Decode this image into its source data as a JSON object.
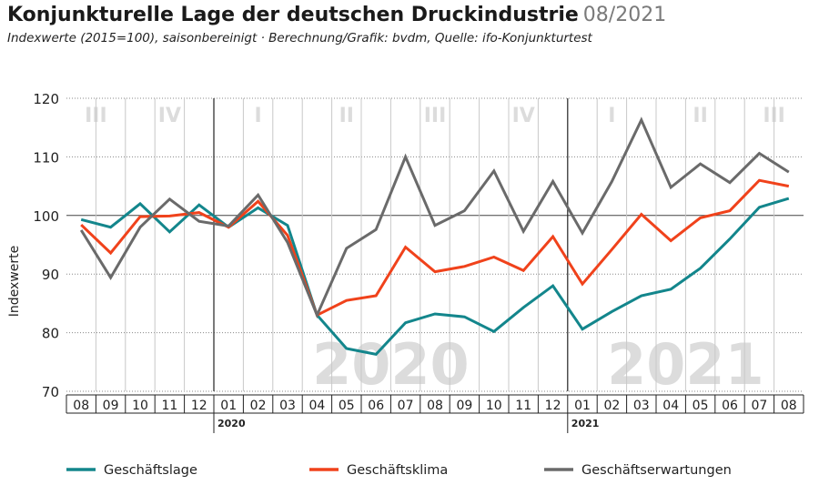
{
  "title": "Konjunkturelle Lage der deutschen Druckindustrie",
  "title_date": "08/2021",
  "subtitle": "Indexwerte (2015=100), saisonbereinigt · Berechnung/Grafik: bvdm, Quelle: ifo-Konjunkturtest",
  "colors": {
    "Geschäftslage": "#13868c",
    "Geschäftsklima": "#f0421b",
    "Geschäftserwartungen": "#6a6a6a",
    "watermark": "#dcdcdc",
    "grid": "#bbbbbb"
  },
  "chart_data": {
    "type": "line",
    "ylabel": "Indexwerte",
    "xlabel": "",
    "ylim": [
      70,
      120
    ],
    "yticks": [
      70,
      80,
      90,
      100,
      110,
      120
    ],
    "reference_line": 100,
    "grid": true,
    "legend_position": "bottom",
    "categories": [
      "08",
      "09",
      "10",
      "11",
      "12",
      "01",
      "02",
      "03",
      "04",
      "05",
      "06",
      "07",
      "08",
      "09",
      "10",
      "11",
      "12",
      "01",
      "02",
      "03",
      "04",
      "05",
      "06",
      "07",
      "08"
    ],
    "year_labels": [
      {
        "label": "2020",
        "start_index": 5
      },
      {
        "label": "2021",
        "start_index": 17
      }
    ],
    "year_watermarks": [
      {
        "label": "2020",
        "start_index": 5,
        "end_index": 16
      },
      {
        "label": "2021",
        "start_index": 17,
        "end_index": 24
      }
    ],
    "quarters": [
      {
        "label": "III",
        "start_index": 0,
        "end_index": 1
      },
      {
        "label": "IV",
        "start_index": 2,
        "end_index": 4
      },
      {
        "label": "I",
        "start_index": 5,
        "end_index": 7
      },
      {
        "label": "II",
        "start_index": 8,
        "end_index": 10
      },
      {
        "label": "III",
        "start_index": 11,
        "end_index": 13
      },
      {
        "label": "IV",
        "start_index": 14,
        "end_index": 16
      },
      {
        "label": "I",
        "start_index": 17,
        "end_index": 19
      },
      {
        "label": "II",
        "start_index": 20,
        "end_index": 22
      },
      {
        "label": "III",
        "start_index": 23,
        "end_index": 24
      }
    ],
    "series": [
      {
        "name": "Geschäftslage",
        "values": [
          99.3,
          98.0,
          102.0,
          97.2,
          101.8,
          98.0,
          101.3,
          98.3,
          83.0,
          77.3,
          76.3,
          81.7,
          83.2,
          82.7,
          80.2,
          84.3,
          88.0,
          80.6,
          83.6,
          86.3,
          87.4,
          91.0,
          96.0,
          101.4,
          102.9
        ]
      },
      {
        "name": "Geschäftsklima",
        "values": [
          98.4,
          93.6,
          99.8,
          99.9,
          100.5,
          98.0,
          102.4,
          96.6,
          83.0,
          85.5,
          86.3,
          94.6,
          90.4,
          91.3,
          92.9,
          90.6,
          96.4,
          88.3,
          94.2,
          100.2,
          95.7,
          99.6,
          100.8,
          106.0,
          105.0
        ]
      },
      {
        "name": "Geschäftserwartungen",
        "values": [
          97.5,
          89.4,
          98.0,
          102.8,
          99.0,
          98.2,
          103.5,
          95.4,
          83.0,
          94.4,
          97.6,
          110.0,
          98.3,
          100.8,
          107.6,
          97.3,
          105.8,
          97.0,
          105.8,
          116.3,
          104.8,
          108.8,
          105.6,
          110.6,
          107.4
        ]
      }
    ]
  }
}
